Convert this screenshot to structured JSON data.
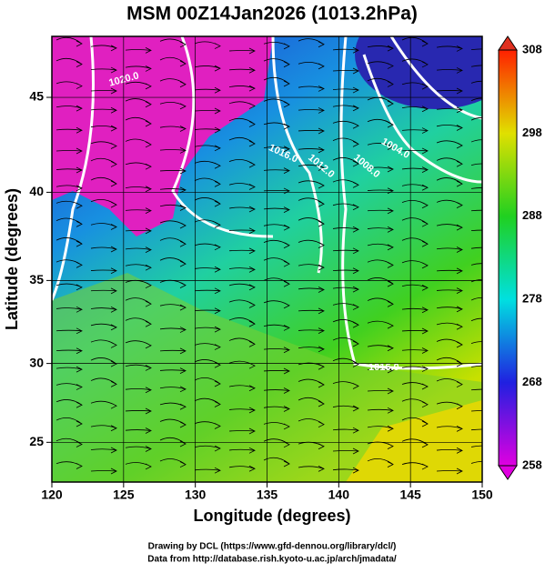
{
  "title": "MSM 00Z14Jan2026 (1013.2hPa)",
  "map": {
    "xlabel": "Longitude (degrees)",
    "ylabel": "Latitude  (degrees)",
    "xlim": [
      120,
      150
    ],
    "ylim": [
      22.4,
      48
    ],
    "xticks": [
      120,
      125,
      130,
      135,
      140,
      145,
      150
    ],
    "yticks": [
      25,
      30,
      35,
      40,
      45
    ],
    "contour_labels": [
      "1020.0",
      "1016.0",
      "1012.0",
      "1008.0",
      "1004.0",
      "1016.0"
    ]
  },
  "colorbar": {
    "lim": [
      258,
      308
    ],
    "ticks": [
      258,
      268,
      278,
      288,
      298,
      308
    ]
  },
  "credits": [
    "Drawing by DCL (https://www.gfd-dennou.org/library/dcl/)",
    "Data from http://database.rish.kyoto-u.ac.jp/arch/jmadata/"
  ]
}
